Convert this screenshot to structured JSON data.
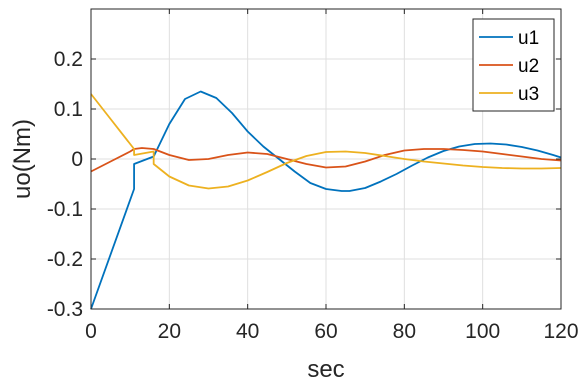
{
  "chart_data": {
    "type": "line",
    "title": "",
    "xlabel": "sec",
    "ylabel": "uo(Nm)",
    "xlim": [
      0,
      120
    ],
    "ylim": [
      -0.3,
      0.3
    ],
    "xticks": [
      0,
      20,
      40,
      60,
      80,
      100,
      120
    ],
    "yticks": [
      -0.3,
      -0.2,
      -0.1,
      0,
      0.1,
      0.2
    ],
    "xtick_labels": [
      "0",
      "20",
      "40",
      "60",
      "80",
      "100",
      "120"
    ],
    "ytick_labels": [
      "-0.3",
      "-0.2",
      "-0.1",
      "0",
      "0.1",
      "0.2"
    ],
    "grid": true,
    "legend_position": "top-right",
    "series": [
      {
        "name": "u1",
        "color": "#0072BD",
        "x": [
          0,
          11,
          11,
          16,
          20,
          24,
          28,
          32,
          36,
          40,
          44,
          48,
          52,
          56,
          60,
          64,
          66,
          70,
          74,
          78,
          82,
          86,
          90,
          94,
          98,
          102,
          106,
          110,
          114,
          118,
          120
        ],
        "y": [
          -0.3,
          -0.06,
          -0.01,
          0.005,
          0.07,
          0.12,
          0.135,
          0.122,
          0.092,
          0.055,
          0.025,
          0.0,
          -0.025,
          -0.048,
          -0.06,
          -0.064,
          -0.064,
          -0.058,
          -0.045,
          -0.03,
          -0.013,
          0.003,
          0.016,
          0.025,
          0.03,
          0.031,
          0.029,
          0.024,
          0.017,
          0.008,
          0.003
        ]
      },
      {
        "name": "u2",
        "color": "#D95319",
        "x": [
          0,
          5,
          10,
          11,
          13,
          16,
          20,
          25,
          30,
          35,
          40,
          45,
          50,
          55,
          60,
          65,
          70,
          75,
          80,
          85,
          90,
          95,
          100,
          105,
          110,
          115,
          120
        ],
        "y": [
          -0.025,
          -0.005,
          0.015,
          0.02,
          0.022,
          0.02,
          0.008,
          -0.002,
          0.0,
          0.008,
          0.013,
          0.01,
          0.0,
          -0.01,
          -0.017,
          -0.015,
          -0.005,
          0.008,
          0.017,
          0.02,
          0.02,
          0.018,
          0.015,
          0.01,
          0.005,
          0.0,
          -0.003
        ]
      },
      {
        "name": "u3",
        "color": "#EDB120",
        "x": [
          0,
          5,
          10,
          11,
          11,
          16,
          16,
          20,
          25,
          30,
          35,
          40,
          45,
          50,
          55,
          60,
          65,
          70,
          75,
          80,
          85,
          90,
          95,
          100,
          105,
          110,
          115,
          120
        ],
        "y": [
          0.13,
          0.08,
          0.03,
          0.02,
          0.008,
          0.015,
          -0.01,
          -0.035,
          -0.053,
          -0.059,
          -0.055,
          -0.043,
          -0.026,
          -0.008,
          0.006,
          0.014,
          0.015,
          0.012,
          0.006,
          0.0,
          -0.005,
          -0.009,
          -0.013,
          -0.016,
          -0.018,
          -0.019,
          -0.019,
          -0.018
        ]
      }
    ]
  }
}
